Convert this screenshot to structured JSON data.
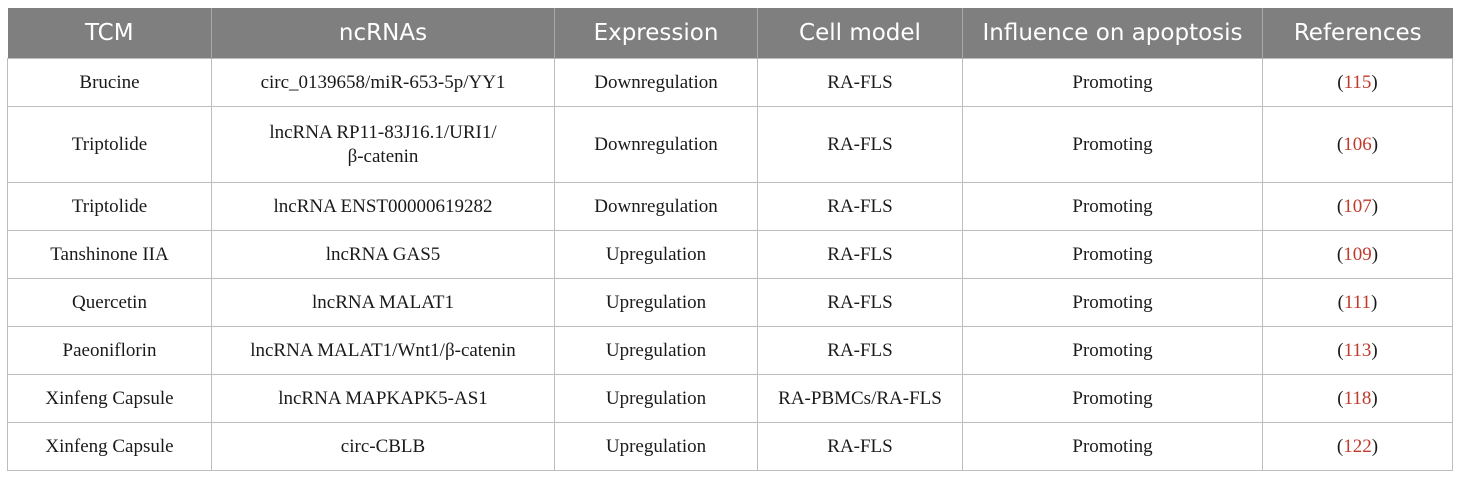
{
  "table": {
    "headers": [
      "TCM",
      "ncRNAs",
      "Expression",
      "Cell model",
      "Influence on apoptosis",
      "References"
    ],
    "rows": [
      {
        "tcm": "Brucine",
        "ncrna_1": "circ_0139658/miR-653-5p/YY1",
        "ncrna_2": "",
        "expression": "Downregulation",
        "cell_model": "RA-FLS",
        "influence": "Promoting",
        "ref": "115"
      },
      {
        "tcm": "Triptolide",
        "ncrna_1": "lncRNA RP11-83J16.1/URI1/",
        "ncrna_2": "β-catenin",
        "expression": "Downregulation",
        "cell_model": "RA-FLS",
        "influence": "Promoting",
        "ref": "106"
      },
      {
        "tcm": "Triptolide",
        "ncrna_1": "lncRNA ENST00000619282",
        "ncrna_2": "",
        "expression": "Downregulation",
        "cell_model": "RA-FLS",
        "influence": "Promoting",
        "ref": "107"
      },
      {
        "tcm": "Tanshinone IIA",
        "ncrna_1": "lncRNA GAS5",
        "ncrna_2": "",
        "expression": "Upregulation",
        "cell_model": "RA-FLS",
        "influence": "Promoting",
        "ref": "109"
      },
      {
        "tcm": "Quercetin",
        "ncrna_1": "lncRNA MALAT1",
        "ncrna_2": "",
        "expression": "Upregulation",
        "cell_model": "RA-FLS",
        "influence": "Promoting",
        "ref": "111"
      },
      {
        "tcm": "Paeoniflorin",
        "ncrna_1": "lncRNA MALAT1/Wnt1/β-catenin",
        "ncrna_2": "",
        "expression": "Upregulation",
        "cell_model": "RA-FLS",
        "influence": "Promoting",
        "ref": "113"
      },
      {
        "tcm": "Xinfeng Capsule",
        "ncrna_1": "lncRNA MAPKAPK5-AS1",
        "ncrna_2": "",
        "expression": "Upregulation",
        "cell_model": "RA-PBMCs/RA-FLS",
        "influence": "Promoting",
        "ref": "118"
      },
      {
        "tcm": "Xinfeng Capsule",
        "ncrna_1": "circ-CBLB",
        "ncrna_2": "",
        "expression": "Upregulation",
        "cell_model": "RA-FLS",
        "influence": "Promoting",
        "ref": "122"
      }
    ]
  },
  "colors": {
    "header_bg": "#7f7f7f",
    "header_text": "#ffffff",
    "reference_link": "#c0392b",
    "grid": "#bdbdbd"
  }
}
